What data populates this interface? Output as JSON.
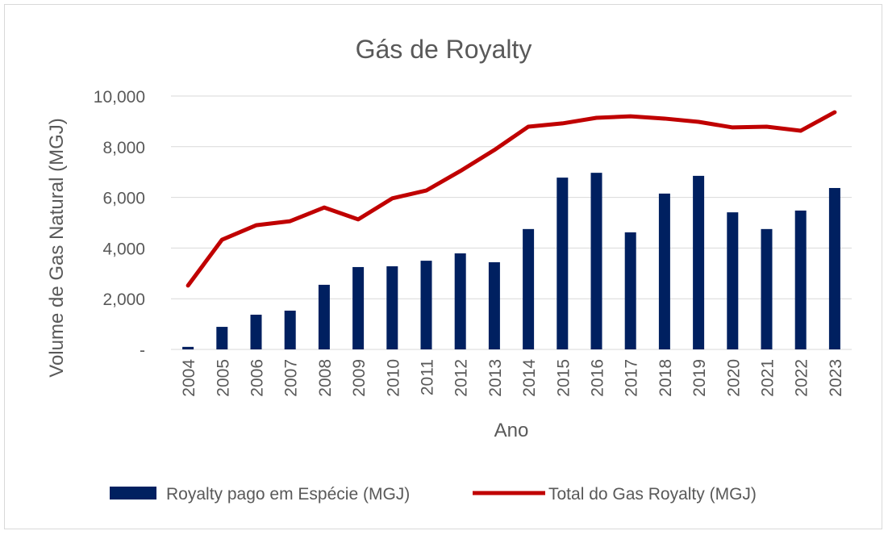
{
  "chart_data": {
    "type": "bar",
    "title": "Gás de Royalty",
    "xlabel": "Ano",
    "ylabel": "Volume de Gas Natural (MGJ)",
    "ylim": [
      0,
      10000
    ],
    "yticks": [
      0,
      2000,
      4000,
      6000,
      8000,
      10000
    ],
    "ytick_labels": [
      "-",
      "2,000",
      "4,000",
      "6,000",
      "8,000",
      "10,000"
    ],
    "grid": true,
    "legend_position": "bottom",
    "categories": [
      "2004",
      "2005",
      "2006",
      "2007",
      "2008",
      "2009",
      "2010",
      "2011",
      "2012",
      "2013",
      "2014",
      "2015",
      "2016",
      "2017",
      "2018",
      "2019",
      "2020",
      "2021",
      "2022",
      "2023"
    ],
    "series": [
      {
        "name": "Royalty pago em Espécie  (MGJ)",
        "type": "bar",
        "color": "#002060",
        "values": [
          100,
          890,
          1370,
          1530,
          2550,
          3250,
          3280,
          3500,
          3790,
          3440,
          4750,
          6780,
          6970,
          4620,
          6150,
          6850,
          5410,
          4750,
          5480,
          6370
        ]
      },
      {
        "name": "Total do Gas Royalty (MGJ)",
        "type": "line",
        "color": "#c00000",
        "values": [
          2520,
          4330,
          4900,
          5060,
          5600,
          5130,
          5960,
          6270,
          7040,
          7870,
          8790,
          8920,
          9140,
          9200,
          9110,
          8980,
          8760,
          8790,
          8630,
          9360
        ]
      }
    ]
  }
}
